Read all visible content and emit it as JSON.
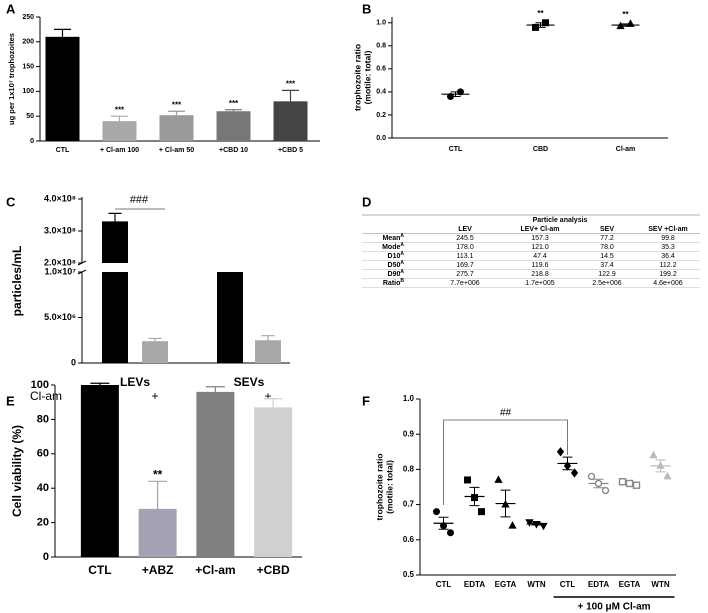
{
  "chart_data": [
    {
      "type": "bar",
      "panel": "A",
      "ylabel": "ug per 1x10⁷ trophozoites",
      "categories": [
        "CTL",
        "+ Cl-am 100",
        "+ Cl-am 50",
        "+CBD 10",
        "+CBD 5"
      ],
      "values": [
        210,
        40,
        52,
        60,
        80
      ],
      "errors": [
        15,
        10,
        8,
        3,
        22
      ],
      "colors": [
        "#000000",
        "#a8a8a8",
        "#9a9a9a",
        "#777777",
        "#444444"
      ],
      "stars": [
        null,
        "***",
        "***",
        "***",
        "***"
      ],
      "ylim": [
        0,
        250
      ],
      "yticks": [
        0,
        50,
        100,
        150,
        200,
        250
      ]
    },
    {
      "type": "dot",
      "panel": "B",
      "ylabel": [
        "trophozoite ratio",
        "(motile: total)"
      ],
      "categories": [
        "CTL",
        "CBD",
        "Cl-am"
      ],
      "points": [
        [
          0.36,
          0.4
        ],
        [
          0.96,
          1.0
        ],
        [
          0.97,
          0.99
        ]
      ],
      "means": [
        0.38,
        0.98,
        0.98
      ],
      "errors": [
        0.02,
        0.02,
        0.01
      ],
      "markers": [
        "circle",
        "square",
        "triangle"
      ],
      "colors": [
        "#000000",
        "#000000",
        "#000000"
      ],
      "open": [
        false,
        false,
        false
      ],
      "stars": [
        null,
        "**",
        "**"
      ],
      "ylim": [
        0,
        1.05
      ],
      "yticks": [
        {
          "value": 0,
          "label": "0.0"
        },
        0.2,
        0.4,
        0.6,
        0.8,
        {
          "value": 1,
          "label": "1.0"
        }
      ]
    },
    {
      "type": "bar",
      "panel": "C",
      "ylabel": "particles/mL",
      "groups": [
        "LEVs",
        "SEVs"
      ],
      "row_label": "Cl-am",
      "categories": [
        "-",
        "+",
        "-",
        "+"
      ],
      "values": [
        330000000,
        2400000,
        10000000,
        2500000
      ],
      "errors": [
        25000000,
        300000,
        null,
        500000
      ],
      "colors": [
        "#000000",
        "#a8a8a8",
        "#000000",
        "#a8a8a8"
      ],
      "annotation": "###",
      "ylim": [
        0,
        400000000
      ],
      "ybreak": [
        10000000,
        200000000
      ],
      "yticks": [
        0,
        {
          "value": 5000000,
          "label": "5.0×10⁶"
        },
        {
          "value": 10000000,
          "label": "1.0×10⁷"
        },
        {
          "value": 200000000,
          "label": "2.0×10⁸"
        },
        {
          "value": 300000000,
          "label": "3.0×10⁸"
        },
        {
          "value": 400000000,
          "label": "4.0×10⁸"
        }
      ]
    },
    {
      "type": "bar",
      "panel": "E",
      "ylabel": "Cell viability (%)",
      "categories": [
        "CTL",
        "+ABZ",
        "+Cl-am",
        "+CBD"
      ],
      "values": [
        100,
        28,
        96,
        87
      ],
      "errors": [
        1,
        16,
        3,
        5
      ],
      "colors": [
        "#000000",
        "#a3a3b3",
        "#808080",
        "#d0d0d0"
      ],
      "stars": [
        null,
        "**",
        null,
        null
      ],
      "ylim": [
        0,
        100
      ],
      "yticks": [
        0,
        20,
        40,
        60,
        80,
        100
      ]
    },
    {
      "type": "dot",
      "panel": "F",
      "ylabel": [
        "trophozoite ratio",
        "(motile: total)"
      ],
      "categories": [
        "CTL",
        "EDTA",
        "EGTA",
        "WTN",
        "CTL",
        "EDTA",
        "EGTA",
        "WTN"
      ],
      "points": [
        [
          0.68,
          0.64,
          0.62
        ],
        [
          0.77,
          0.72,
          0.68
        ],
        [
          0.77,
          0.7,
          0.64
        ],
        [
          0.65,
          0.645,
          0.64
        ],
        [
          0.85,
          0.81,
          0.79
        ],
        [
          0.78,
          0.76,
          0.74
        ],
        [
          0.765,
          0.76,
          0.755
        ],
        [
          0.84,
          0.81,
          0.78
        ]
      ],
      "means": [
        0.647,
        0.723,
        0.703,
        0.645,
        0.817,
        0.76,
        0.76,
        0.81
      ],
      "errors": [
        0.017,
        0.026,
        0.038,
        0.003,
        0.018,
        0.012,
        0.003,
        0.017
      ],
      "markers": [
        "circle",
        "square",
        "triangle",
        "triangle-down",
        "diamond",
        "circle",
        "square",
        "triangle"
      ],
      "colors": [
        "#000000",
        "#000000",
        "#000000",
        "#000000",
        "#000000",
        "#888888",
        "#888888",
        "#bbbbbb"
      ],
      "open": [
        false,
        false,
        false,
        false,
        false,
        true,
        true,
        false
      ],
      "annotation": "##",
      "group_label": "+ 100 μM Cl-am",
      "ylim": [
        0.5,
        1.0
      ],
      "yticks": [
        0.5,
        0.6,
        0.7,
        0.8,
        0.9,
        {
          "value": 1,
          "label": "1.0"
        }
      ]
    }
  ],
  "table": {
    "panel": "D",
    "title": "Particle analysis",
    "columns": [
      "LEV",
      "LEV+ Cl-am",
      "SEV",
      "SEV +Cl-am"
    ],
    "rows": [
      {
        "label": "Mean",
        "note": "A",
        "cells": [
          "245.5",
          "157.3",
          "77.2",
          "99.8"
        ]
      },
      {
        "label": "Mode",
        "note": "A",
        "cells": [
          "178.0",
          "121.0",
          "78.0",
          "35.3"
        ]
      },
      {
        "label": "D10",
        "note": "A",
        "cells": [
          "113.1",
          "47.4",
          "14.5",
          "36.4"
        ]
      },
      {
        "label": "D50",
        "note": "A",
        "cells": [
          "169.7",
          "119.6",
          "37.4",
          "112.2"
        ]
      },
      {
        "label": "D90",
        "note": "A",
        "cells": [
          "275.7",
          "218.8",
          "122.9",
          "199.2"
        ]
      },
      {
        "label": "Ratio",
        "note": "B",
        "cells": [
          "7.7e+006",
          "1.7e+005",
          "2.5e+006",
          "4.6e+006"
        ]
      }
    ]
  }
}
